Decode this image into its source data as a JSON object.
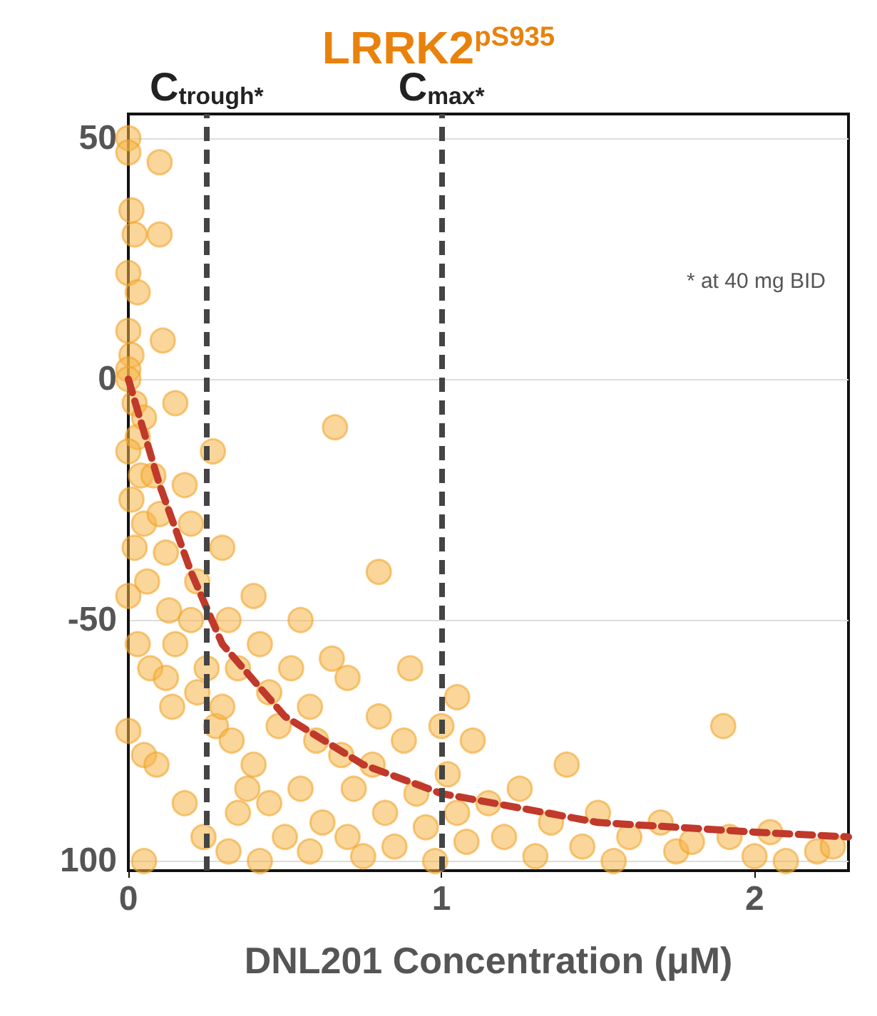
{
  "chart_data": {
    "type": "scatter",
    "title": "LRRK2$^{pS935}$",
    "xlabel": "DNL201 Concentration (μM)",
    "xlim": [
      0,
      2.3
    ],
    "xticks": [
      0,
      1,
      2
    ],
    "ylim": [
      -102,
      55
    ],
    "yticks": [
      {
        "value": -100,
        "label": "100"
      },
      -50,
      0,
      50
    ],
    "grid": "y",
    "marker": "circle",
    "annotations": [
      "* at 40 mg BID"
    ],
    "ref_lines": [
      {
        "axis": "x",
        "value": 0.25,
        "label": "C$_{trough*}$",
        "color": "#444444",
        "line_style": "dashed"
      },
      {
        "axis": "x",
        "value": 1.0,
        "label": "C$_{max*}$",
        "color": "#444444",
        "line_style": "dashed"
      }
    ],
    "series": [
      {
        "color": "#f5b547",
        "x": [
          0,
          0,
          0.01,
          0.02,
          0,
          0.03,
          0,
          0.01,
          0,
          0,
          0.02,
          0.03,
          0,
          0.04,
          0.01,
          0.05,
          0.02,
          0.06,
          0,
          0.03,
          0.07,
          0,
          0.05,
          0.1,
          0.1,
          0.11,
          0.08,
          0.1,
          0.12,
          0.13,
          0.15,
          0.12,
          0.14,
          0.09,
          0.05,
          0.18,
          0.2,
          0.22,
          0.2,
          0.25,
          0.22,
          0.28,
          0.18,
          0.24,
          0.3,
          0.32,
          0.35,
          0.3,
          0.33,
          0.38,
          0.35,
          0.32,
          0.4,
          0.42,
          0.45,
          0.48,
          0.4,
          0.45,
          0.5,
          0.42,
          0.55,
          0.52,
          0.58,
          0.6,
          0.55,
          0.62,
          0.58,
          0.66,
          0.65,
          0.7,
          0.68,
          0.72,
          0.7,
          0.75,
          0.8,
          0.8,
          0.78,
          0.82,
          0.85,
          0.9,
          0.88,
          0.92,
          0.95,
          0.98,
          1.0,
          1.02,
          1.05,
          1.05,
          1.08,
          1.1,
          1.15,
          1.2,
          1.25,
          1.3,
          1.35,
          1.4,
          1.45,
          1.5,
          1.55,
          1.6,
          1.7,
          1.75,
          1.8,
          1.9,
          1.92,
          2.0,
          2.05,
          2.1,
          2.2,
          2.25,
          0.27,
          0.15,
          0.05
        ],
        "values": [
          50,
          47,
          35,
          30,
          22,
          18,
          10,
          5,
          2,
          0,
          -5,
          -12,
          -15,
          -20,
          -25,
          -30,
          -35,
          -42,
          -45,
          -55,
          -60,
          -73,
          -78,
          45,
          30,
          8,
          -20,
          -28,
          -36,
          -48,
          -55,
          -62,
          -68,
          -80,
          -100,
          -22,
          -30,
          -42,
          -50,
          -60,
          -65,
          -72,
          -88,
          -95,
          -35,
          -50,
          -60,
          -68,
          -75,
          -85,
          -90,
          -98,
          -45,
          -55,
          -65,
          -72,
          -80,
          -88,
          -95,
          -100,
          -50,
          -60,
          -68,
          -75,
          -85,
          -92,
          -98,
          -10,
          -58,
          -62,
          -78,
          -85,
          -95,
          -99,
          -40,
          -70,
          -80,
          -90,
          -97,
          -60,
          -75,
          -86,
          -93,
          -100,
          -72,
          -82,
          -66,
          -90,
          -96,
          -75,
          -88,
          -95,
          -85,
          -99,
          -92,
          -80,
          -97,
          -90,
          -100,
          -95,
          -92,
          -98,
          -96,
          -72,
          -95,
          -99,
          -94,
          -100,
          -98,
          -97,
          -15,
          -5,
          -8
        ]
      },
      {
        "type": "line",
        "color": "#c0392b",
        "line_style": "dashed",
        "marker": "none",
        "x": [
          0,
          0.1,
          0.2,
          0.3,
          0.5,
          0.75,
          1.0,
          1.5,
          2.0,
          2.3
        ],
        "values": [
          0,
          -22,
          -40,
          -55,
          -70,
          -80,
          -86,
          -92,
          -94,
          -95
        ]
      }
    ]
  }
}
